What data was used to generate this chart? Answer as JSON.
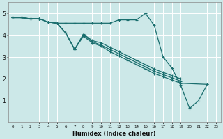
{
  "title": "",
  "xlabel": "Humidex (Indice chaleur)",
  "xlim": [
    -0.5,
    23.5
  ],
  "ylim": [
    0,
    5.5
  ],
  "yticks": [
    1,
    2,
    3,
    4,
    5
  ],
  "xticks": [
    0,
    1,
    2,
    3,
    4,
    5,
    6,
    7,
    8,
    9,
    10,
    11,
    12,
    13,
    14,
    15,
    16,
    17,
    18,
    19,
    20,
    21,
    22,
    23
  ],
  "bg_color": "#cce8e8",
  "line_color": "#1a6e6e",
  "grid_color": "#ffffff",
  "lines": [
    {
      "x": [
        0,
        1,
        2,
        3,
        4,
        5,
        6,
        7,
        8,
        9,
        10,
        11,
        12,
        13,
        14,
        15,
        16,
        17,
        18,
        19,
        20,
        21,
        22
      ],
      "y": [
        4.8,
        4.8,
        4.75,
        4.75,
        4.6,
        4.55,
        4.55,
        4.55,
        4.55,
        4.55,
        4.55,
        4.55,
        4.7,
        4.7,
        4.7,
        5.0,
        4.45,
        3.0,
        2.5,
        1.7,
        0.65,
        1.0,
        1.75
      ]
    },
    {
      "x": [
        0,
        1,
        2,
        3,
        4,
        5,
        6,
        7,
        8,
        9,
        10,
        11,
        12,
        13,
        14,
        15,
        16,
        17,
        18,
        19
      ],
      "y": [
        4.8,
        4.8,
        4.75,
        4.75,
        4.6,
        4.55,
        4.1,
        3.35,
        4.05,
        3.75,
        3.65,
        3.45,
        3.25,
        3.05,
        2.85,
        2.65,
        2.45,
        2.3,
        2.15,
        2.0
      ]
    },
    {
      "x": [
        0,
        1,
        2,
        3,
        4,
        5,
        6,
        7,
        8,
        9,
        10,
        11,
        12,
        13,
        14,
        15,
        16,
        17,
        18,
        19
      ],
      "y": [
        4.8,
        4.8,
        4.75,
        4.75,
        4.6,
        4.55,
        4.1,
        3.35,
        4.0,
        3.7,
        3.55,
        3.35,
        3.15,
        2.95,
        2.75,
        2.55,
        2.35,
        2.2,
        2.05,
        1.9
      ]
    },
    {
      "x": [
        0,
        1,
        2,
        3,
        4,
        5,
        6,
        7,
        8,
        9,
        10,
        11,
        12,
        13,
        14,
        15,
        16,
        17,
        18,
        19,
        22
      ],
      "y": [
        4.8,
        4.8,
        4.75,
        4.75,
        4.6,
        4.55,
        4.1,
        3.35,
        3.95,
        3.65,
        3.5,
        3.25,
        3.05,
        2.85,
        2.65,
        2.45,
        2.25,
        2.1,
        1.95,
        1.8,
        1.75
      ]
    }
  ]
}
